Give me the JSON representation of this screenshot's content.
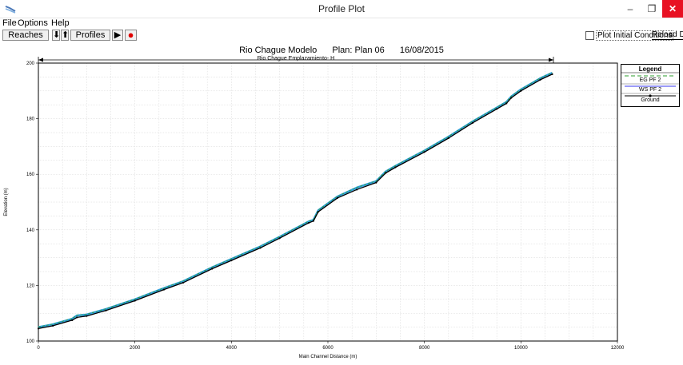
{
  "window": {
    "title": "Profile Plot",
    "minimize": "–",
    "maximize": "❐",
    "close": "✕"
  },
  "menu": [
    "File",
    "Options",
    "Help"
  ],
  "toolbar": {
    "reaches": "Reaches ...",
    "down": "⬇",
    "up": "⬆",
    "profiles": "Profiles ...",
    "play": "▶",
    "record": "●",
    "plot_initial": "Plot Initial Conditions",
    "reload": "Reload Data"
  },
  "plot_header": {
    "model": "Rio Chague Modelo",
    "plan": "Plan: Plan 06",
    "date": "16/08/2015"
  },
  "reach_label": "Rio Chague Emplazamiento- H",
  "colors": {
    "eg": "#2e9e2e",
    "ws": "#2f9fe0",
    "ground": "#000000",
    "wsline": "#3a3af0",
    "record": "#e00000"
  },
  "legend": {
    "title": "Legend",
    "items": [
      "EG PF 2",
      "WS PF 2",
      "Ground"
    ]
  },
  "chart_data": {
    "type": "line",
    "xlabel": "Main Channel Distance (m)",
    "ylabel": "Elevation (m)",
    "xlim": [
      0,
      12000
    ],
    "ylim": [
      100,
      200
    ],
    "xticks": [
      "0",
      "2000",
      "4000",
      "6000",
      "8000",
      "10000",
      "12000"
    ],
    "yticks": [
      "100",
      "120",
      "140",
      "160",
      "180",
      "200"
    ],
    "grid": true,
    "legend_position": "right",
    "series": [
      {
        "name": "Ground",
        "x": [
          0,
          300,
          700,
          800,
          1000,
          1400,
          2000,
          2600,
          3000,
          3600,
          4000,
          4600,
          5000,
          5600,
          5700,
          5800,
          6200,
          6600,
          7000,
          7200,
          7400,
          8000,
          8500,
          9000,
          9500,
          9700,
          9800,
          10000,
          10400,
          10650
        ],
        "y": [
          104.5,
          105.5,
          107.5,
          108.5,
          109,
          111,
          114.5,
          118.5,
          121,
          126,
          129,
          133.5,
          137,
          142.5,
          143.2,
          146.5,
          151.5,
          154.5,
          157,
          160.5,
          162.5,
          168,
          173,
          178.5,
          183.5,
          185.5,
          187.5,
          190,
          194,
          196
        ]
      },
      {
        "name": "WS PF 2",
        "x": [
          0,
          300,
          700,
          800,
          1000,
          1400,
          2000,
          2600,
          3000,
          3600,
          4000,
          4600,
          5000,
          5600,
          5700,
          5800,
          6200,
          6600,
          7000,
          7200,
          7400,
          8000,
          8500,
          9000,
          9500,
          9700,
          9800,
          10000,
          10400,
          10650
        ],
        "y": [
          105,
          106,
          108,
          109.2,
          109.5,
          111.5,
          115,
          119,
          121.5,
          126.5,
          129.5,
          134,
          137.5,
          143,
          143.6,
          147,
          152,
          155.2,
          157.5,
          161,
          163,
          168.5,
          173.5,
          179,
          184,
          186,
          188,
          190.5,
          194.5,
          196.5
        ]
      },
      {
        "name": "EG PF 2",
        "x": [
          0,
          300,
          700,
          800,
          1000,
          1400,
          2000,
          2600,
          3000,
          3600,
          4000,
          4600,
          5000,
          5600,
          5700,
          5800,
          6200,
          6600,
          7000,
          7200,
          7400,
          8000,
          8500,
          9000,
          9500,
          9700,
          9800,
          10000,
          10400,
          10650
        ],
        "y": [
          105.1,
          106.1,
          108.1,
          109.3,
          109.6,
          111.6,
          115.1,
          119.1,
          121.6,
          126.6,
          129.6,
          134.1,
          137.6,
          143.1,
          143.7,
          147.1,
          152.1,
          155.3,
          157.6,
          161.1,
          163.1,
          168.6,
          173.6,
          179.1,
          184.1,
          186.1,
          188.1,
          190.6,
          194.6,
          196.6
        ]
      }
    ]
  }
}
